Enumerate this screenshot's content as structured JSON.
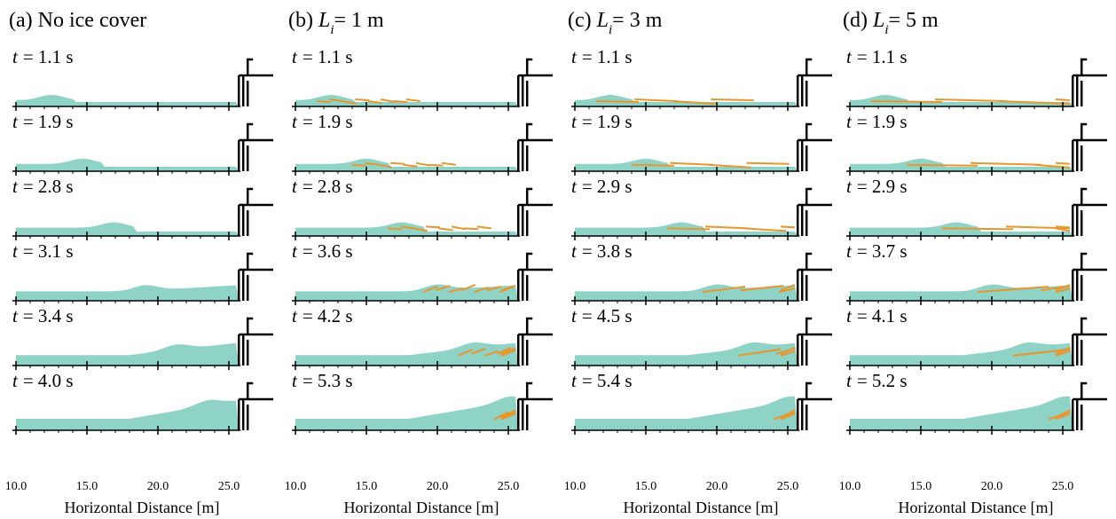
{
  "columns": [
    {
      "title": [
        {
          "text": "(a) No ice cover"
        }
      ],
      "times": [
        {
          "var": "t",
          "text": "= 1.1 s"
        },
        {
          "var": "t",
          "text": "= 1.9 s"
        },
        {
          "var": "t",
          "text": "= 2.8 s"
        },
        {
          "var": "t",
          "text": "= 3.1 s"
        },
        {
          "var": "t",
          "text": "= 3.4 s"
        },
        {
          "var": "t",
          "text": "= 4.0 s"
        }
      ],
      "xticks": [
        "10.0",
        "15.0",
        "20.0",
        "25.0"
      ],
      "xlabel": "Horizontal Distance [m]",
      "ice": false
    },
    {
      "title": [
        {
          "text": "(b) "
        },
        {
          "text": "L",
          "italic": true
        },
        {
          "text": "i",
          "italic": true,
          "sub": true
        },
        {
          "text": "= 1 m"
        }
      ],
      "times": [
        {
          "var": "t",
          "text": "= 1.1 s"
        },
        {
          "var": "t",
          "text": "= 1.9 s"
        },
        {
          "var": "t",
          "text": "= 2.8 s"
        },
        {
          "var": "t",
          "text": "= 3.6 s"
        },
        {
          "var": "t",
          "text": "= 4.2 s"
        },
        {
          "var": "t",
          "text": "= 5.3 s"
        }
      ],
      "xticks": [
        "10.0",
        "15.0",
        "20.0",
        "25.0"
      ],
      "xlabel": "Horizontal Distance [m]",
      "ice": true
    },
    {
      "title": [
        {
          "text": "(c) "
        },
        {
          "text": "L",
          "italic": true
        },
        {
          "text": "i",
          "italic": true,
          "sub": true
        },
        {
          "text": "= 3 m"
        }
      ],
      "times": [
        {
          "var": "t",
          "text": "= 1.1 s"
        },
        {
          "var": "t",
          "text": "= 1.9 s"
        },
        {
          "var": "t",
          "text": "= 2.9 s"
        },
        {
          "var": "t",
          "text": "= 3.8 s"
        },
        {
          "var": "t",
          "text": "= 4.5 s"
        },
        {
          "var": "t",
          "text": "= 5.4 s"
        }
      ],
      "xticks": [
        "10.0",
        "15.0",
        "20.0",
        "25.0"
      ],
      "xlabel": "Horizontal Distance [m]",
      "ice": true
    },
    {
      "title": [
        {
          "text": "(d) "
        },
        {
          "text": "L",
          "italic": true
        },
        {
          "text": "i",
          "italic": true,
          "sub": true
        },
        {
          "text": "= 5 m"
        }
      ],
      "times": [
        {
          "var": "t",
          "text": "= 1.1 s"
        },
        {
          "var": "t",
          "text": "= 1.9 s"
        },
        {
          "var": "t",
          "text": "= 2.9 s"
        },
        {
          "var": "t",
          "text": "= 3.7 s"
        },
        {
          "var": "t",
          "text": "= 4.1 s"
        },
        {
          "var": "t",
          "text": "= 5.2 s"
        }
      ],
      "xticks": [
        "10.0",
        "15.0",
        "20.0",
        "25.0"
      ],
      "xlabel": "Horizontal Distance [m]",
      "ice": true
    }
  ]
}
